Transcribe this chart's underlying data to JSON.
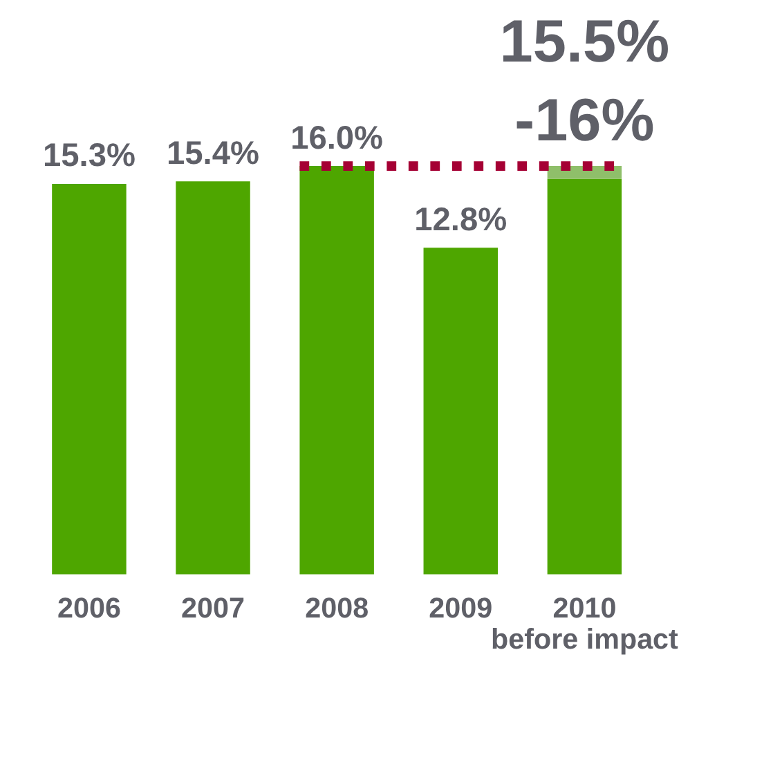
{
  "chart_data": {
    "type": "bar",
    "stacked": true,
    "categories": [
      "2006",
      "2007",
      "2008",
      "2009",
      "2010\nbefore impact"
    ],
    "series": [
      {
        "color": "#4ea600",
        "values": [
          15.3,
          15.4,
          16.0,
          12.8,
          15.5
        ],
        "value_labels": [
          "15.3%",
          "15.4%",
          "16.0%",
          "12.8%",
          null
        ]
      },
      {
        "color": "#8fbf6a",
        "values": [
          null,
          null,
          null,
          null,
          0.5
        ]
      }
    ],
    "annotations": [
      {
        "text": "15.5%",
        "x": "2010\nbefore impact",
        "y": 16
      },
      {
        "text": "-16%",
        "x": "2010\nbefore impact",
        "y": 16
      }
    ],
    "ref_lines": [
      {
        "axis": "y",
        "value": 16,
        "color": "#a50034",
        "line_style": "dotted"
      }
    ],
    "tick_labels": "x",
    "grid": false,
    "legend": false
  }
}
